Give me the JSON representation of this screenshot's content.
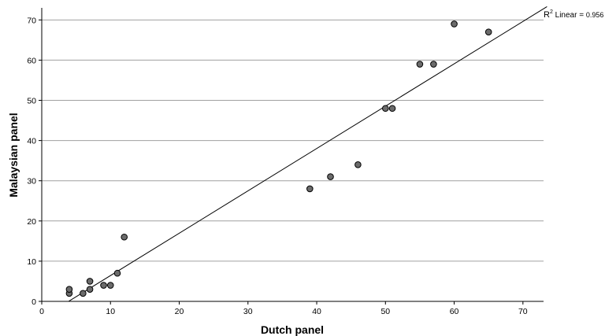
{
  "chart_data": {
    "type": "scatter",
    "xlabel": "Dutch panel",
    "ylabel": "Malaysian panel",
    "xlim": [
      0,
      73
    ],
    "ylim": [
      0,
      73
    ],
    "x_ticks": [
      0,
      10,
      20,
      30,
      40,
      50,
      60,
      70
    ],
    "y_ticks": [
      0,
      10,
      20,
      30,
      40,
      50,
      60,
      70
    ],
    "grid": "horizontal",
    "points": [
      {
        "x": 4,
        "y": 2
      },
      {
        "x": 4,
        "y": 3
      },
      {
        "x": 6,
        "y": 2
      },
      {
        "x": 7,
        "y": 3
      },
      {
        "x": 7,
        "y": 5
      },
      {
        "x": 9,
        "y": 4
      },
      {
        "x": 10,
        "y": 4
      },
      {
        "x": 11,
        "y": 7
      },
      {
        "x": 12,
        "y": 16
      },
      {
        "x": 39,
        "y": 28
      },
      {
        "x": 42,
        "y": 31
      },
      {
        "x": 46,
        "y": 34
      },
      {
        "x": 50,
        "y": 48
      },
      {
        "x": 51,
        "y": 48
      },
      {
        "x": 55,
        "y": 59
      },
      {
        "x": 57,
        "y": 59
      },
      {
        "x": 60,
        "y": 69
      },
      {
        "x": 65,
        "y": 67
      }
    ],
    "fit_line": {
      "type": "linear",
      "start": {
        "x": 3.9,
        "y": 0
      },
      "end": {
        "x": 73.5,
        "y": 73.3
      }
    },
    "r2_label": {
      "prefix": "R",
      "sup": "2",
      "text": " Linear = ",
      "value": "0.956"
    },
    "colors": {
      "point_fill": "#6b6b6b",
      "point_stroke": "#000000",
      "grid": "#a0a0a0",
      "line": "#000000"
    }
  }
}
